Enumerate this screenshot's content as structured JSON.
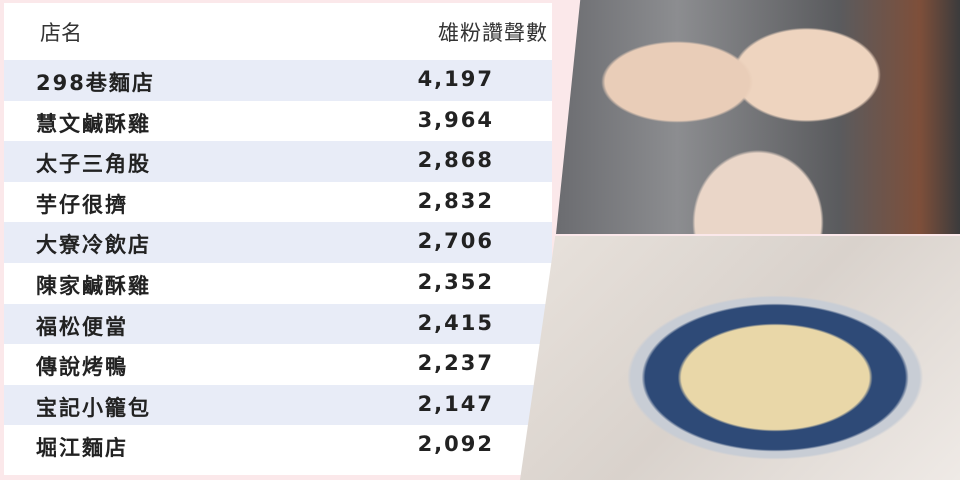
{
  "table": {
    "headers": {
      "name": "店名",
      "count": "雄粉讚聲數"
    },
    "rows": [
      {
        "name": "298巷麵店",
        "count": "4,197"
      },
      {
        "name": "慧文鹹酥雞",
        "count": "3,964"
      },
      {
        "name": "太子三角股",
        "count": "2,868"
      },
      {
        "name": "芋仔很擠",
        "count": "2,832"
      },
      {
        "name": "大寮冷飲店",
        "count": "2,706"
      },
      {
        "name": "陳家鹹酥雞",
        "count": "2,352"
      },
      {
        "name": "福松便當",
        "count": "2,415"
      },
      {
        "name": "傳說烤鴨",
        "count": "2,237"
      },
      {
        "name": "宝記小籠包",
        "count": "2,147"
      },
      {
        "name": "堀江麵店",
        "count": "2,092"
      }
    ]
  },
  "colors": {
    "border": "#fbe8ea",
    "row_alt": "#e8ecf7"
  },
  "photos": [
    "fried-chicken-photo",
    "noodle-bowl-photo"
  ]
}
